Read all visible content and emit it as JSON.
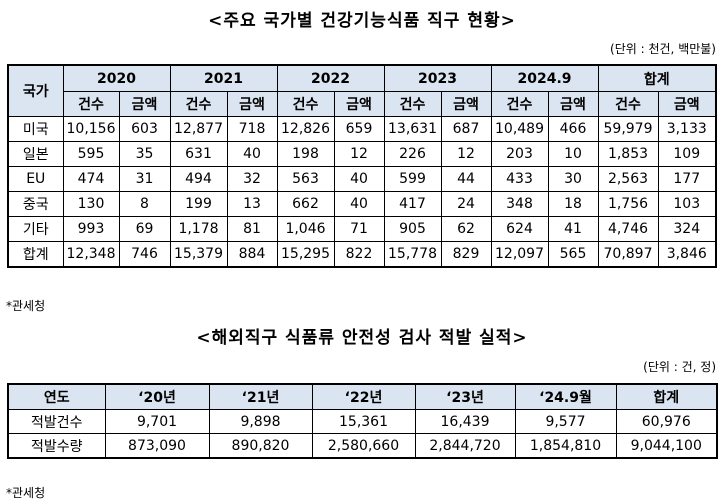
{
  "table1": {
    "title": "<주요 국가별 건강기능식품 직구 현황>",
    "unit": "(단위 : 천건, 백만불)",
    "header_country": "국가",
    "years": [
      "2020",
      "2021",
      "2022",
      "2023",
      "2024.9",
      "합계"
    ],
    "sub_count": "건수",
    "sub_amount": "금액",
    "rows": [
      {
        "label": "미국",
        "cells": [
          "10,156",
          "603",
          "12,877",
          "718",
          "12,826",
          "659",
          "13,631",
          "687",
          "10,489",
          "466",
          "59,979",
          "3,133"
        ]
      },
      {
        "label": "일본",
        "cells": [
          "595",
          "35",
          "631",
          "40",
          "198",
          "12",
          "226",
          "12",
          "203",
          "10",
          "1,853",
          "109"
        ]
      },
      {
        "label": "EU",
        "cells": [
          "474",
          "31",
          "494",
          "32",
          "563",
          "40",
          "599",
          "44",
          "433",
          "30",
          "2,563",
          "177"
        ]
      },
      {
        "label": "중국",
        "cells": [
          "130",
          "8",
          "199",
          "13",
          "662",
          "40",
          "417",
          "24",
          "348",
          "18",
          "1,756",
          "103"
        ]
      },
      {
        "label": "기타",
        "cells": [
          "993",
          "69",
          "1,178",
          "81",
          "1,046",
          "71",
          "905",
          "62",
          "624",
          "41",
          "4,746",
          "324"
        ]
      },
      {
        "label": "합계",
        "cells": [
          "12,348",
          "746",
          "15,379",
          "884",
          "15,295",
          "822",
          "15,778",
          "829",
          "12,097",
          "565",
          "70,897",
          "3,846"
        ]
      }
    ],
    "source": "*관세청"
  },
  "table2": {
    "title": "<해외직구 식품류 안전성 검사 적발 실적>",
    "unit": "(단위 : 건, 정)",
    "header_year": "연도",
    "years": [
      "‘20년",
      "‘21년",
      "‘22년",
      "‘23년",
      "‘24.9월",
      "합계"
    ],
    "rows": [
      {
        "label": "적발건수",
        "cells": [
          "9,701",
          "9,898",
          "15,361",
          "16,439",
          "9,577",
          "60,976"
        ]
      },
      {
        "label": "적발수량",
        "cells": [
          "873,090",
          "890,820",
          "2,580,660",
          "2,844,720",
          "1,854,810",
          "9,044,100"
        ]
      }
    ],
    "source": "*관세청"
  }
}
